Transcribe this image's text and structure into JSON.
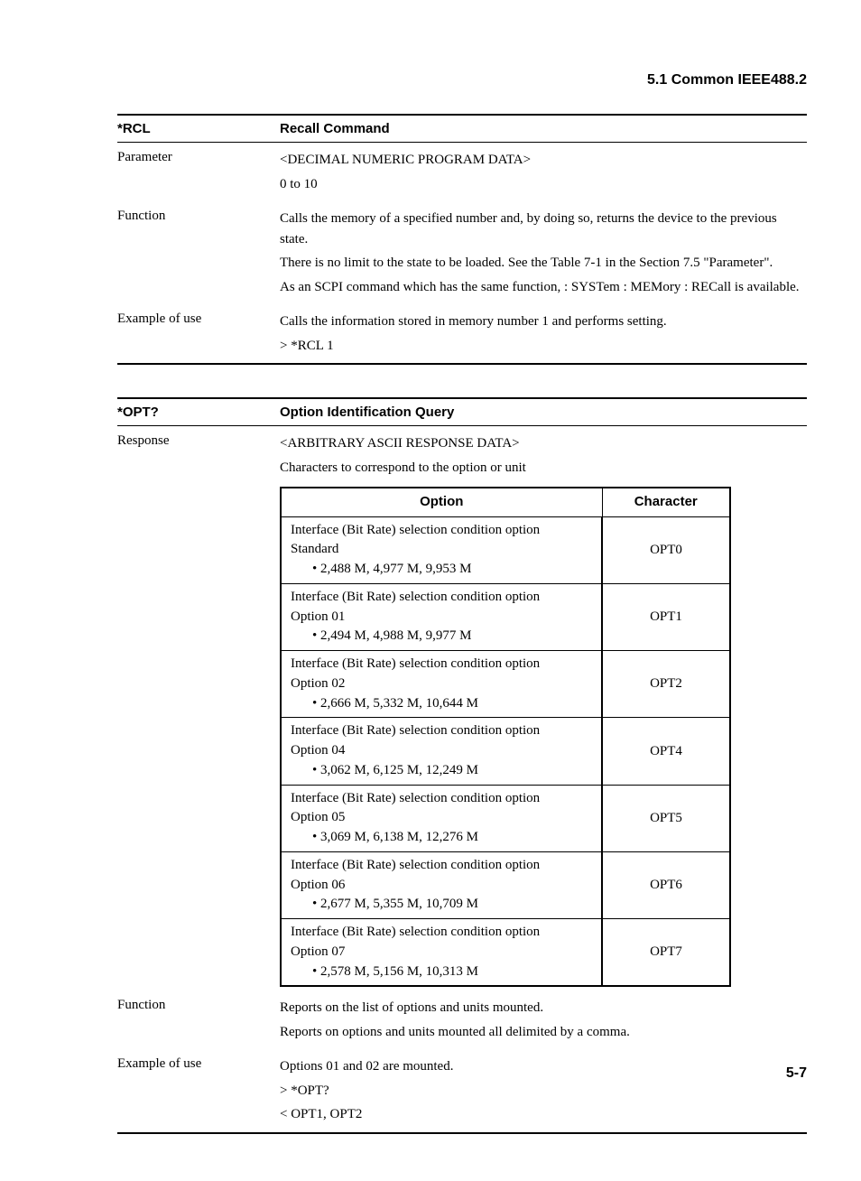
{
  "header": {
    "section": "5.1  Common IEEE488.2"
  },
  "rcl": {
    "cmd": "*RCL",
    "title": "Recall Command",
    "param_label": "Parameter",
    "param_l1": "<DECIMAL NUMERIC PROGRAM DATA>",
    "param_l2": "0 to 10",
    "func_label": "Function",
    "func_l1": "Calls the memory of a specified number and, by doing so, returns the device to the previous state.",
    "func_l2": "There is no limit to the state to be loaded.  See the Table 7-1 in the Section 7.5 \"Parameter\".",
    "func_l3": "As an SCPI command which has the same function, : SYSTem : MEMory : RECall is available.",
    "ex_label": "Example of use",
    "ex_l1": "Calls the information stored in memory number 1 and performs setting.",
    "ex_l2": "> *RCL 1"
  },
  "opt": {
    "cmd": "*OPT?",
    "title": "Option Identification Query",
    "resp_label": "Response",
    "resp_l1": "<ARBITRARY ASCII RESPONSE DATA>",
    "resp_l2": "Characters to correspond to the option or unit",
    "table": {
      "h_option": "Option",
      "h_char": "Character",
      "rows": [
        {
          "l1": "Interface (Bit Rate) selection condition option",
          "l2": "Standard",
          "l3": "• 2,488 M, 4,977 M, 9,953 M",
          "char": "OPT0"
        },
        {
          "l1": "Interface (Bit Rate) selection condition option",
          "l2": "Option 01",
          "l3": "• 2,494 M, 4,988 M, 9,977 M",
          "char": "OPT1"
        },
        {
          "l1": "Interface (Bit Rate) selection condition option",
          "l2": "Option 02",
          "l3": "• 2,666 M, 5,332 M, 10,644 M",
          "char": "OPT2"
        },
        {
          "l1": "Interface (Bit Rate) selection condition option",
          "l2": "Option 04",
          "l3": "• 3,062 M, 6,125 M, 12,249 M",
          "char": "OPT4"
        },
        {
          "l1": "Interface (Bit Rate) selection condition option",
          "l2": "Option 05",
          "l3": "• 3,069 M, 6,138 M, 12,276 M",
          "char": "OPT5"
        },
        {
          "l1": "Interface (Bit Rate) selection condition option",
          "l2": "Option 06",
          "l3": "• 2,677 M, 5,355 M, 10,709 M",
          "char": "OPT6"
        },
        {
          "l1": "Interface (Bit Rate) selection condition option",
          "l2": "Option 07",
          "l3": "• 2,578 M, 5,156 M, 10,313 M",
          "char": "OPT7"
        }
      ]
    },
    "func_label": "Function",
    "func_l1": "Reports on the list of options and units mounted.",
    "func_l2": "Reports on options and units mounted all delimited by a comma.",
    "ex_label": "Example of use",
    "ex_l1": "Options 01 and 02 are mounted.",
    "ex_l2": "> *OPT?",
    "ex_l3": "< OPT1, OPT2"
  },
  "page_number": "5-7"
}
